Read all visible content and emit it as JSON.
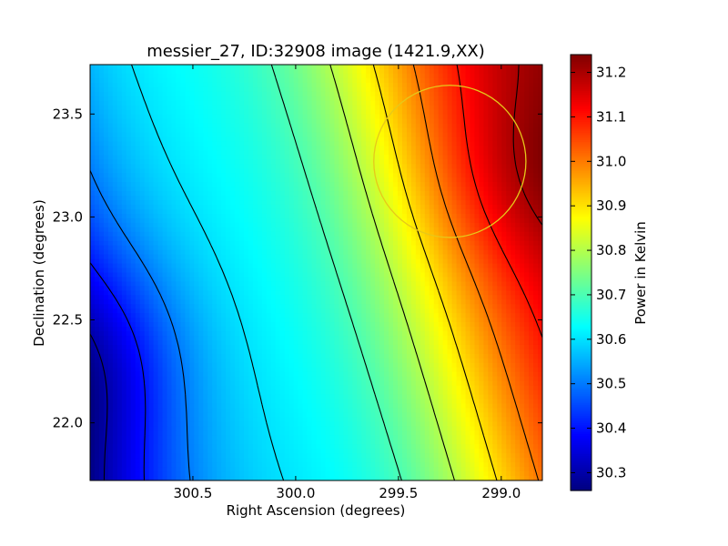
{
  "chart_data": {
    "type": "heatmap",
    "title": "messier_27, ID:32908 image (1421.9,XX)",
    "xlabel": "Right Ascension (degrees)",
    "ylabel": "Declination (degrees)",
    "x_inverted": true,
    "xlim": [
      301.0,
      298.8
    ],
    "ylim": [
      21.72,
      23.74
    ],
    "xticks": [
      300.5,
      300.0,
      299.5,
      299.0
    ],
    "xtick_labels": [
      "300.5",
      "300.0",
      "299.5",
      "299.0"
    ],
    "yticks": [
      22.0,
      22.5,
      23.0,
      23.5
    ],
    "ytick_labels": [
      "22.0",
      "22.5",
      "23.0",
      "23.5"
    ],
    "colormap": "jet",
    "colorbar": {
      "label": "Power in Kelvin",
      "range": [
        30.26,
        31.24
      ],
      "ticks": [
        30.3,
        30.4,
        30.5,
        30.6,
        30.7,
        30.8,
        30.9,
        31.0,
        31.1,
        31.2
      ],
      "tick_labels": [
        "30.3",
        "30.4",
        "30.5",
        "30.6",
        "30.7",
        "30.8",
        "30.9",
        "31.0",
        "31.1",
        "31.2"
      ]
    },
    "field": {
      "description": "smooth power field, minimum at lower-left, maximum at upper-right",
      "min_value": 30.26,
      "max_value": 31.24,
      "min_location": {
        "ra": 300.95,
        "dec": 22.3
      },
      "max_location": {
        "ra": 298.8,
        "dec": 23.2
      }
    },
    "contour_levels": [
      30.3,
      30.4,
      30.5,
      30.6,
      30.7,
      30.8,
      30.9,
      31.0,
      31.1,
      31.2
    ],
    "beam_circle": {
      "center_ra": 299.25,
      "center_dec": 23.27,
      "radius_deg": 0.37,
      "color": "#e6c81a"
    },
    "contour_color": "#000000",
    "grid": false
  }
}
